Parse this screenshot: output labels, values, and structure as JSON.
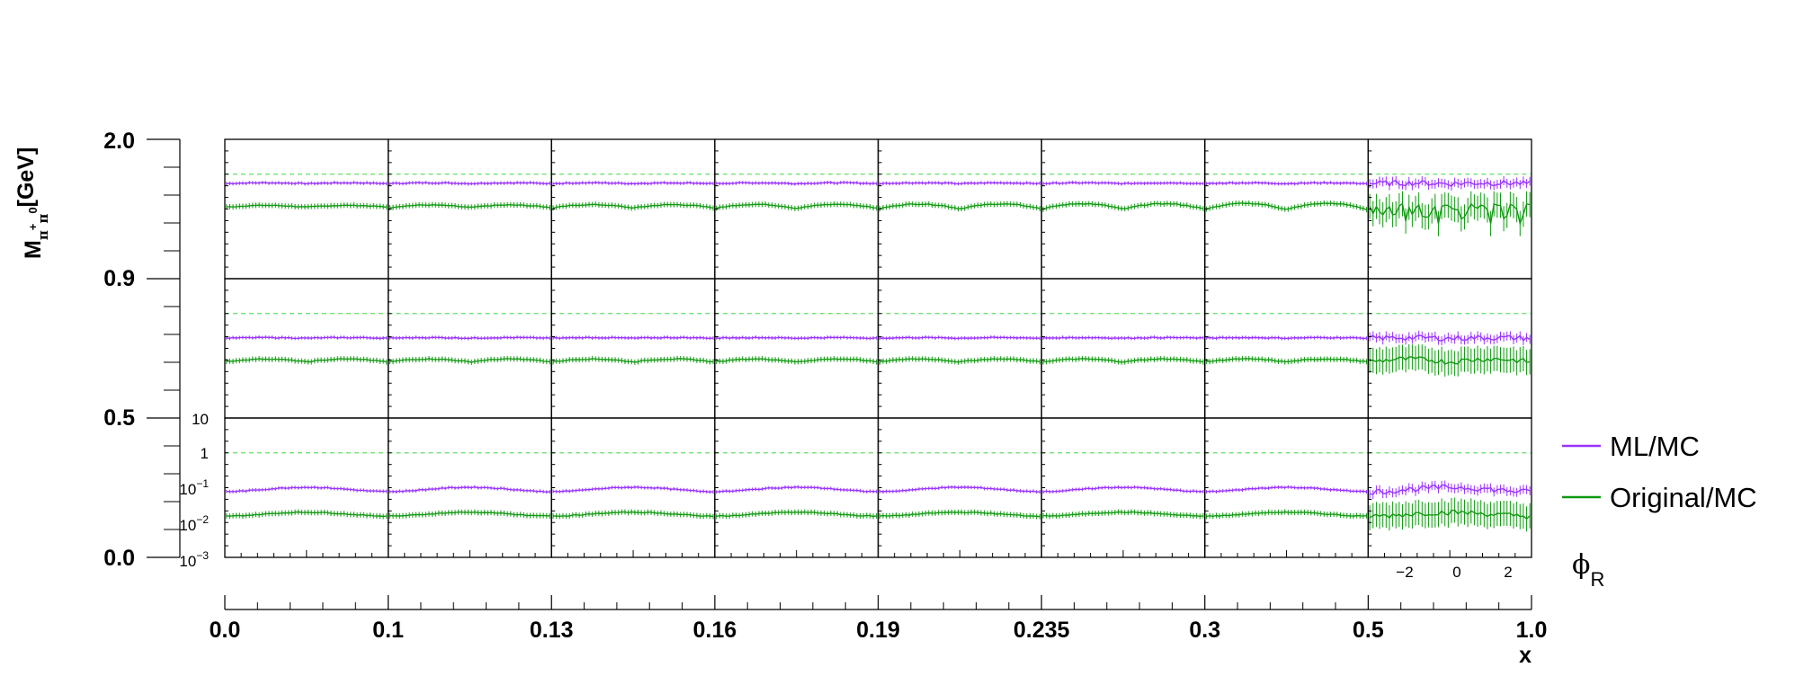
{
  "chart_data": {
    "type": "line",
    "title": "",
    "y_outer": {
      "label_main": "M",
      "label_sub1": "π",
      "label_sup1": "+",
      "label_sub2": "π",
      "label_sup2": "0",
      "label_unit": "[GeV]",
      "ticks": [
        "0.0",
        "0.5",
        "0.9",
        "2.0"
      ]
    },
    "x_outer": {
      "label": "x",
      "ticks": [
        "0.0",
        "0.1",
        "0.13",
        "0.16",
        "0.19",
        "0.235",
        "0.3",
        "0.5",
        "1.0"
      ]
    },
    "inner_x": {
      "label_main": "ϕ",
      "label_sub": "R",
      "range": [
        -3.14159,
        3.14159
      ],
      "ticks": [
        "−2",
        "0",
        "2"
      ]
    },
    "inner_y": {
      "scale": "log",
      "range": [
        0.001,
        10
      ],
      "tick_labels": [
        {
          "base": "10",
          "exp": "−3"
        },
        {
          "base": "10",
          "exp": "−2"
        },
        {
          "base": "10",
          "exp": "−1"
        },
        {
          "base": "1",
          "exp": ""
        },
        {
          "base": "10",
          "exp": ""
        }
      ]
    },
    "reference_line": 1,
    "legend": {
      "position": "right",
      "entries": [
        {
          "label": "ML/MC",
          "color": "#9933ff"
        },
        {
          "label": "Original/MC",
          "color": "#119911"
        }
      ]
    },
    "series": [
      {
        "name": "ML/MC",
        "color": "#9933ff",
        "levels_by_row": [
          0.55,
          0.2,
          0.09
        ],
        "shape_amplitude_by_row": [
          0.05,
          0.04,
          0.28
        ]
      },
      {
        "name": "Original/MC",
        "color": "#119911",
        "levels_by_row": [
          0.12,
          0.045,
          0.0175
        ],
        "shape_amplitude_by_row": [
          0.45,
          0.2,
          0.25
        ]
      }
    ],
    "rows": [
      "M 0.9–2.0",
      "M 0.5–0.9",
      "M 0.0–0.5"
    ],
    "columns": [
      "x 0.0–0.1",
      "x 0.1–0.13",
      "x 0.13–0.16",
      "x 0.16–0.19",
      "x 0.19–0.235",
      "x 0.235–0.3",
      "x 0.3–0.5",
      "x 0.5–1.0"
    ],
    "grid": false
  },
  "colors": {
    "ml": "#9933ff",
    "original": "#119911",
    "reference": "#66dd66",
    "frame": "#000000"
  }
}
